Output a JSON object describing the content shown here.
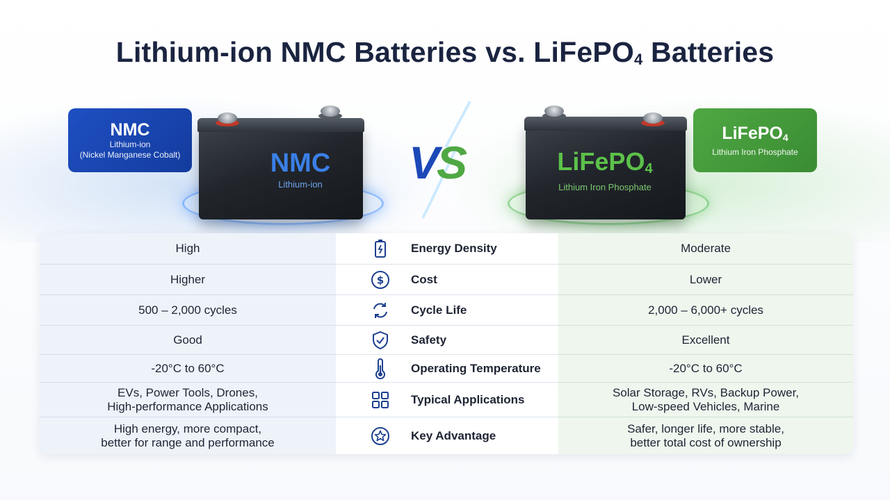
{
  "title": {
    "text_before": "Lithium-ion NMC Batteries vs. LiFePO",
    "subscript": "4",
    "text_after": " Batteries"
  },
  "nmc_tag": {
    "name": "NMC",
    "line1": "Lithium-ion",
    "line2": "(Nickel Manganese Cobalt)",
    "color": "#1e4fc2"
  },
  "lfp_tag": {
    "name": "LiFePO",
    "subscript": "4",
    "line1": "Lithium Iron Phosphate",
    "color": "#4fa843"
  },
  "nmc_battery": {
    "main": "NMC",
    "sub": "Lithium-ion"
  },
  "lfp_battery": {
    "main": "LiFePO",
    "subscript": "4",
    "sub": "Lithium Iron Phosphate"
  },
  "vs": {
    "v": "V",
    "s": "S"
  },
  "rows": [
    {
      "icon": "battery-icon",
      "attribute": "Energy Density",
      "nmc": [
        "High"
      ],
      "lfp": [
        "Moderate"
      ]
    },
    {
      "icon": "dollar-icon",
      "attribute": "Cost",
      "nmc": [
        "Higher"
      ],
      "lfp": [
        "Lower"
      ]
    },
    {
      "icon": "refresh-icon",
      "attribute": "Cycle Life",
      "nmc": [
        "500 – 2,000 cycles"
      ],
      "lfp": [
        "2,000 – 6,000+ cycles"
      ]
    },
    {
      "icon": "shield-check-icon",
      "attribute": "Safety",
      "nmc": [
        "Good"
      ],
      "lfp": [
        "Excellent"
      ]
    },
    {
      "icon": "thermometer-icon",
      "attribute": "Operating Temperature",
      "nmc": [
        "-20°C to 60°C"
      ],
      "lfp": [
        "-20°C to 60°C"
      ]
    },
    {
      "icon": "grid-icon",
      "attribute": "Typical Applications",
      "nmc": [
        "EVs, Power Tools, Drones,",
        "High-performance Applications"
      ],
      "lfp": [
        "Solar Storage, RVs, Backup Power,",
        "Low-speed Vehicles, Marine"
      ]
    },
    {
      "icon": "star-circle-icon",
      "attribute": "Key Advantage",
      "nmc": [
        "High energy, more compact,",
        "better for range and performance"
      ],
      "lfp": [
        "Safer, longer life, more stable,",
        "better total cost of ownership"
      ]
    }
  ],
  "colors": {
    "nmc_accent": "#1e4fc2",
    "lfp_accent": "#4fa843",
    "icon_color": "#1c3f8f"
  }
}
